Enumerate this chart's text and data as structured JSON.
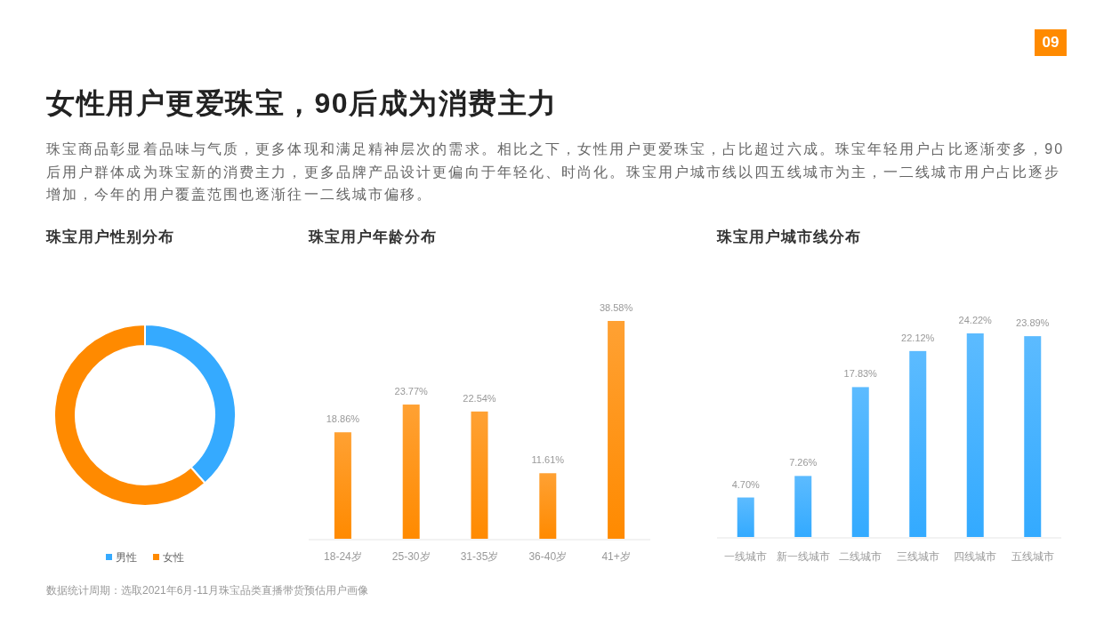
{
  "chart_data": [
    {
      "type": "other",
      "title": "女性用户更爱珠宝，90后成为消费主力",
      "subtitle": "珠宝商品彰显着品味与气质，更多体现和满足精神层次的需求。相比之下，女性用户更爱珠宝，占比超过六成。珠宝年轻用户占比逐渐变多，90后用户群体成为珠宝新的消费主力，更多品牌产品设计更偏向于年轻化、时尚化。珠宝用户城市线以四五线城市为主，一二线城市用户占比逐步增加，今年的用户覆盖范围也逐渐往一二线城市偏移。",
      "annotations": [
        "09",
        "数据统计周期：选取2021年6月-11月珠宝品类直播带货预估用户画像"
      ]
    },
    {
      "type": "donut",
      "title": "珠宝用户性别分布",
      "categories": [
        "男性",
        "女性"
      ],
      "values": [
        38.5,
        61.5
      ],
      "colors": [
        "#35aaff",
        "#ff8a00"
      ],
      "legend": "bottom"
    },
    {
      "type": "bar",
      "title": "珠宝用户年龄分布",
      "categories": [
        "18-24岁",
        "25-30岁",
        "31-35岁",
        "36-40岁",
        "41+岁"
      ],
      "values": [
        18.86,
        23.77,
        22.54,
        11.61,
        38.58
      ],
      "value_labels": [
        "18.86%",
        "23.77%",
        "22.54%",
        "11.61%",
        "38.58%"
      ],
      "color": "#ff8a00"
    },
    {
      "type": "bar",
      "title": "珠宝用户城市线分布",
      "categories": [
        "一线城市",
        "新一线城市",
        "二线城市",
        "三线城市",
        "四线城市",
        "五线城市"
      ],
      "values": [
        4.7,
        7.26,
        17.83,
        22.12,
        24.22,
        23.89
      ],
      "value_labels": [
        "4.70%",
        "7.26%",
        "17.83%",
        "22.12%",
        "24.22%",
        "23.89%"
      ],
      "color": "#33aaff"
    }
  ]
}
